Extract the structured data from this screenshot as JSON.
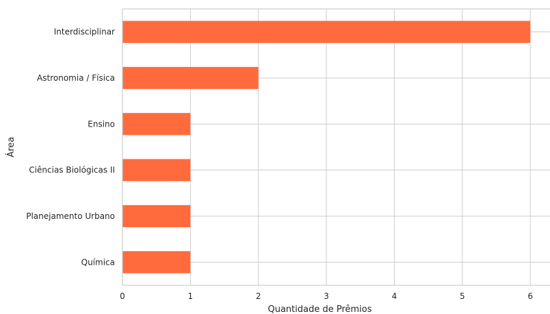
{
  "chart_data": {
    "type": "bar",
    "orientation": "horizontal",
    "categories": [
      "Interdisciplinar",
      "Astronomia / Física",
      "Ensino",
      "Ciências Biológicas II",
      "Planejamento Urbano",
      "Química"
    ],
    "values": [
      6,
      2,
      1,
      1,
      1,
      1
    ],
    "title": "",
    "xlabel": "Quantidade de Prêmios",
    "ylabel": "Área",
    "xlim": [
      0,
      6.3
    ],
    "xticks": [
      "0",
      "1",
      "2",
      "3",
      "4",
      "5",
      "6"
    ],
    "grid": true,
    "legend": "none",
    "bar_color": "#ff6b3d",
    "grid_color": "#cccccc"
  }
}
